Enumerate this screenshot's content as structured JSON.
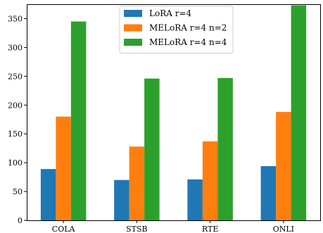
{
  "chart_data": {
    "type": "bar",
    "title": "",
    "xlabel": "",
    "ylabel": "",
    "categories": [
      "COLA",
      "STSB",
      "RTE",
      "ONLI"
    ],
    "series": [
      {
        "name": "LoRA r=4",
        "color": "#1f77b4",
        "values": [
          89,
          70,
          71,
          94
        ]
      },
      {
        "name": "MELoRA r=4 n=2",
        "color": "#ff7f0e",
        "values": [
          180,
          128,
          137,
          188
        ]
      },
      {
        "name": "MELoRA r=4 n=4",
        "color": "#2ca02c",
        "values": [
          345,
          246,
          247,
          373
        ]
      }
    ],
    "ylim": [
      0,
      375
    ],
    "yticks": [
      0,
      50,
      100,
      150,
      200,
      250,
      300,
      350
    ],
    "grid": false,
    "legend_position": "top-center"
  }
}
